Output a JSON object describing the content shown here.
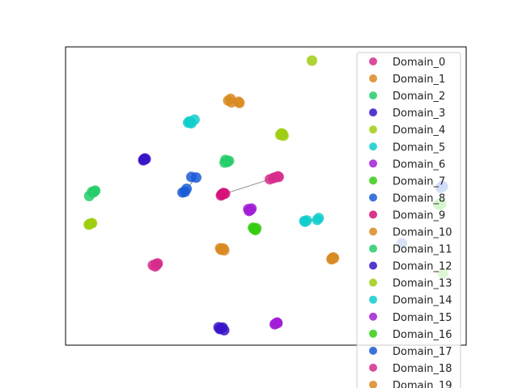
{
  "chart_data": {
    "type": "scatter",
    "title": "",
    "xlabel": "",
    "ylabel": "",
    "xlim": [
      0,
      100
    ],
    "ylim": [
      0,
      100
    ],
    "axis_ticks": "hidden",
    "grid": false,
    "legend": "upper-right",
    "series": [
      {
        "name": "Domain_0",
        "color": "#d62d8c",
        "points": [
          [
            21.8,
            26.8
          ],
          [
            22.6,
            27.2
          ],
          [
            22.8,
            27.0
          ],
          [
            23.0,
            27.4
          ],
          [
            22.4,
            26.4
          ]
        ]
      },
      {
        "name": "Domain_1",
        "color": "#d98a22",
        "points": [
          [
            40.6,
            82.0
          ],
          [
            41.4,
            81.4
          ],
          [
            43.2,
            81.6
          ],
          [
            43.4,
            81.2
          ],
          [
            41.2,
            82.6
          ]
        ]
      },
      {
        "name": "Domain_2",
        "color": "#27cc6b",
        "points": [
          [
            39.7,
            61.2
          ],
          [
            40.4,
            61.4
          ],
          [
            40.8,
            61.8
          ],
          [
            39.9,
            62.1
          ],
          [
            40.3,
            61.6
          ]
        ]
      },
      {
        "name": "Domain_3",
        "color": "#3a14c9",
        "points": [
          [
            38.2,
            6.0
          ],
          [
            38.8,
            5.6
          ],
          [
            39.2,
            5.9
          ],
          [
            39.6,
            5.0
          ],
          [
            38.5,
            5.4
          ]
        ]
      },
      {
        "name": "Domain_4",
        "color": "#9fcc10",
        "points": [
          [
            53.6,
            70.5
          ],
          [
            54.2,
            70.8
          ],
          [
            54.4,
            70.2
          ],
          [
            53.9,
            71.0
          ],
          [
            61.5,
            95.4
          ]
        ]
      },
      {
        "name": "Domain_5",
        "color": "#12cccc",
        "points": [
          [
            30.6,
            74.6
          ],
          [
            31.4,
            74.4
          ],
          [
            32.2,
            75.6
          ],
          [
            30.9,
            75.0
          ],
          [
            31.2,
            74.8
          ]
        ]
      },
      {
        "name": "Domain_6",
        "color": "#a21ed6",
        "points": [
          [
            46.2,
            45.4
          ],
          [
            45.8,
            45.0
          ],
          [
            46.4,
            45.8
          ],
          [
            46.0,
            45.2
          ],
          [
            45.6,
            45.6
          ]
        ]
      },
      {
        "name": "Domain_7",
        "color": "#36cc12",
        "points": [
          [
            47.0,
            39.0
          ],
          [
            47.6,
            39.2
          ],
          [
            47.4,
            38.6
          ],
          [
            46.8,
            39.4
          ],
          [
            47.2,
            38.9
          ]
        ]
      },
      {
        "name": "Domain_8",
        "color": "#1a5ad6",
        "points": [
          [
            29.2,
            51.2
          ],
          [
            29.8,
            51.4
          ],
          [
            30.2,
            52.4
          ],
          [
            32.6,
            56.2
          ],
          [
            31.4,
            56.4
          ]
        ]
      },
      {
        "name": "Domain_9",
        "color": "#d6127a",
        "points": [
          [
            39.2,
            50.5
          ],
          [
            39.8,
            50.8
          ],
          [
            38.8,
            50.2
          ],
          [
            39.4,
            51.0
          ],
          [
            39.0,
            50.6
          ]
        ]
      },
      {
        "name": "Domain_10",
        "color": "#d98a22",
        "points": [
          [
            38.8,
            32.0
          ],
          [
            39.4,
            32.4
          ],
          [
            39.0,
            32.2
          ],
          [
            39.6,
            31.8
          ],
          [
            38.6,
            32.5
          ]
        ]
      },
      {
        "name": "Domain_11",
        "color": "#27cc6b",
        "points": [
          [
            6.6,
            51.4
          ],
          [
            7.4,
            51.8
          ],
          [
            7.0,
            51.2
          ],
          [
            5.9,
            50.0
          ],
          [
            7.2,
            51.6
          ]
        ]
      },
      {
        "name": "Domain_12",
        "color": "#3a14c9",
        "points": [
          [
            19.6,
            62.2
          ],
          [
            19.8,
            62.6
          ],
          [
            19.4,
            62.0
          ],
          [
            20.0,
            62.4
          ],
          [
            19.5,
            62.3
          ]
        ]
      },
      {
        "name": "Domain_13",
        "color": "#9fcc10",
        "points": [
          [
            6.0,
            40.6
          ],
          [
            6.6,
            40.9
          ],
          [
            5.8,
            40.4
          ],
          [
            6.4,
            40.8
          ],
          [
            6.1,
            40.7
          ]
        ]
      },
      {
        "name": "Domain_14",
        "color": "#12cccc",
        "points": [
          [
            59.6,
            41.6
          ],
          [
            60.2,
            41.8
          ],
          [
            62.8,
            42.0
          ],
          [
            63.2,
            42.6
          ],
          [
            59.8,
            41.4
          ]
        ]
      },
      {
        "name": "Domain_15",
        "color": "#a21ed6",
        "points": [
          [
            52.4,
            7.2
          ],
          [
            52.8,
            7.6
          ],
          [
            52.2,
            7.0
          ],
          [
            52.9,
            7.4
          ],
          [
            52.6,
            7.3
          ]
        ]
      },
      {
        "name": "Domain_16",
        "color": "#36cc12",
        "points": [
          [
            93.0,
            47.2
          ],
          [
            93.6,
            47.6
          ],
          [
            94.2,
            24.0
          ],
          [
            93.4,
            47.0
          ],
          [
            93.8,
            47.4
          ]
        ]
      },
      {
        "name": "Domain_17",
        "color": "#1a5ad6",
        "points": [
          [
            93.8,
            53.0
          ],
          [
            94.2,
            53.2
          ],
          [
            84.0,
            34.2
          ],
          [
            93.6,
            52.8
          ],
          [
            94.0,
            53.4
          ]
        ]
      },
      {
        "name": "Domain_18",
        "color": "#d62d8c",
        "points": [
          [
            52.2,
            56.2
          ],
          [
            53.2,
            56.4
          ],
          [
            51.8,
            56.0
          ],
          [
            53.0,
            56.6
          ],
          [
            51.0,
            55.6
          ]
        ]
      },
      {
        "name": "Domain_19",
        "color": "#d98a22",
        "points": [
          [
            66.6,
            29.0
          ],
          [
            67.0,
            29.2
          ],
          [
            66.4,
            28.8
          ],
          [
            66.8,
            29.4
          ],
          [
            66.5,
            29.1
          ]
        ]
      }
    ]
  }
}
